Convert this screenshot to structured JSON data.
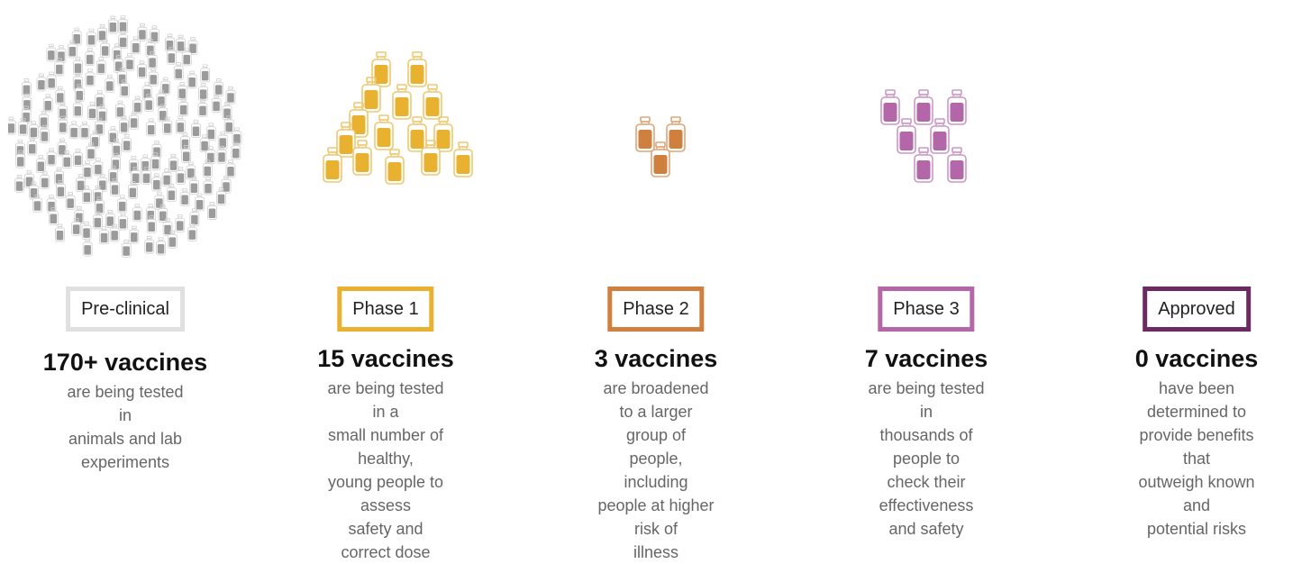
{
  "stages": [
    {
      "id": "preclinical",
      "label": "Pre-clinical",
      "count_text": "170+ vaccines",
      "count": 170,
      "description_lines": [
        "are being tested in",
        "animals and lab",
        "experiments"
      ],
      "color": "#e0e0e0",
      "vial_color": "#9b9b9b",
      "vial_outline": "#cfcfcf"
    },
    {
      "id": "phase-1",
      "label": "Phase 1",
      "count_text": "15 vaccines",
      "count": 15,
      "description_lines": [
        "are being tested in a",
        "small number of healthy,",
        "young people to assess",
        "safety and correct dose"
      ],
      "color": "#e9b130",
      "vial_color": "#e9b130",
      "vial_outline": "#efc870"
    },
    {
      "id": "phase-2",
      "label": "Phase 2",
      "count_text": "3 vaccines",
      "count": 3,
      "description_lines": [
        "are broadened to a larger",
        "group of people, including",
        "people at higher risk of",
        "illness"
      ],
      "color": "#cf7f3e",
      "vial_color": "#cf7f3e",
      "vial_outline": "#dfa577"
    },
    {
      "id": "phase-3",
      "label": "Phase 3",
      "count_text": "7 vaccines",
      "count": 7,
      "description_lines": [
        "are being tested in",
        "thousands of people to",
        "check their effectiveness",
        "and safety"
      ],
      "color": "#b367a9",
      "vial_color": "#b367a9",
      "vial_outline": "#cd97c6"
    },
    {
      "id": "approved",
      "label": "Approved",
      "count_text": "0 vaccines",
      "count": 0,
      "description_lines": [
        "have been determined to",
        "provide benefits that",
        "outweigh known and",
        "potential risks"
      ],
      "color": "#6b2b62",
      "vial_color": "#6b2b62",
      "vial_outline": "#6b2b62"
    }
  ]
}
